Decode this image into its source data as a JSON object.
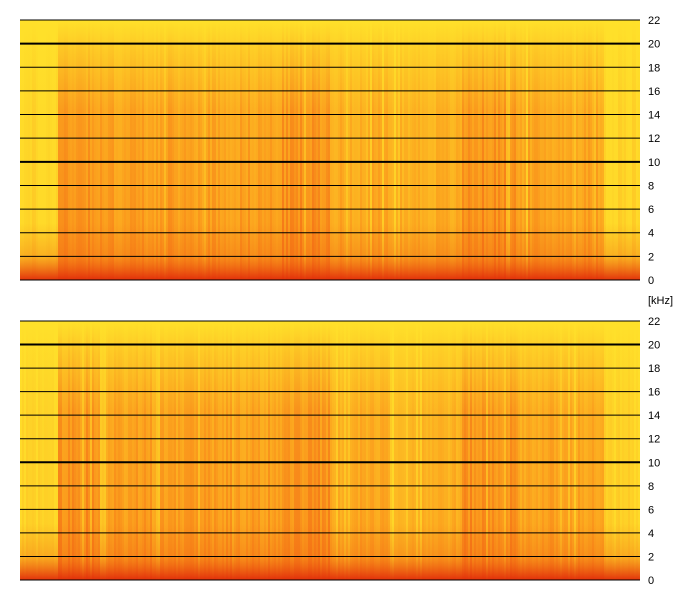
{
  "chart_data": [
    {
      "type": "heatmap",
      "title": "",
      "xlabel": "",
      "ylabel": "",
      "ylim": [
        0,
        22
      ],
      "y_ticks": [
        "0",
        "2",
        "4",
        "6",
        "8",
        "10",
        "12",
        "14",
        "16",
        "18",
        "20",
        "22"
      ],
      "colors": {
        "low": "#ffe12a",
        "mid": "#fb9a1c",
        "high": "#e8260c"
      }
    },
    {
      "type": "heatmap",
      "title": "",
      "xlabel": "",
      "ylabel": "",
      "ylim": [
        0,
        22
      ],
      "y_ticks": [
        "0",
        "2",
        "4",
        "6",
        "8",
        "10",
        "12",
        "14",
        "16",
        "18",
        "20",
        "22"
      ],
      "colors": {
        "low": "#ffe12a",
        "mid": "#fb9a1c",
        "high": "#e8260c"
      }
    }
  ],
  "y_unit": "[kHz]",
  "x_bands": [
    {
      "from": 0.0,
      "to": 0.06,
      "level": 0.08
    },
    {
      "from": 0.06,
      "to": 0.12,
      "level": 0.55
    },
    {
      "from": 0.12,
      "to": 0.42,
      "level": 0.48
    },
    {
      "from": 0.42,
      "to": 0.5,
      "level": 0.55
    },
    {
      "from": 0.5,
      "to": 0.6,
      "level": 0.42
    },
    {
      "from": 0.6,
      "to": 0.71,
      "level": 0.38
    },
    {
      "from": 0.71,
      "to": 0.8,
      "level": 0.55
    },
    {
      "from": 0.8,
      "to": 0.94,
      "level": 0.45
    },
    {
      "from": 0.94,
      "to": 1.0,
      "level": 0.1
    }
  ]
}
